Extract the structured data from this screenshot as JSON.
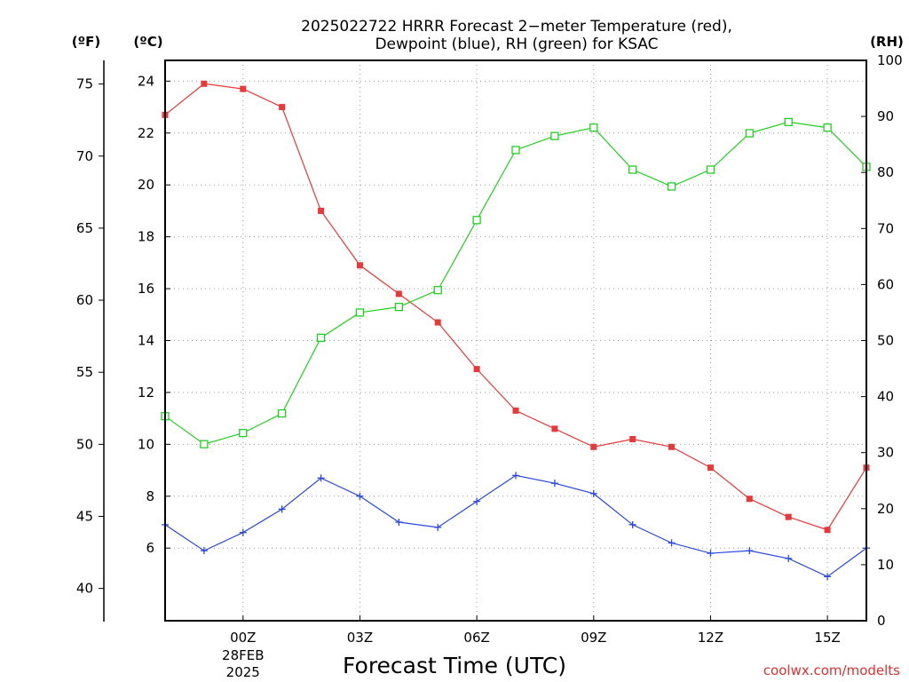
{
  "chart_data": {
    "type": "line",
    "title": [
      "2025022722 HRRR Forecast 2−meter Temperature (red),",
      "Dewpoint (blue), RH (green) for KSAC"
    ],
    "xlabel": "Forecast Time (UTC)",
    "credit": "coolwx.com/modelts",
    "units": {
      "fahrenheit": "(ºF)",
      "celsius": "(ºC)",
      "rh": "(RH)"
    },
    "x_ticks": [
      {
        "label": "00Z",
        "sublabels": [
          "28FEB",
          "2025"
        ],
        "hour": 2
      },
      {
        "label": "03Z",
        "sublabels": [],
        "hour": 5
      },
      {
        "label": "06Z",
        "sublabels": [],
        "hour": 8
      },
      {
        "label": "09Z",
        "sublabels": [],
        "hour": 11
      },
      {
        "label": "12Z",
        "sublabels": [],
        "hour": 14
      },
      {
        "label": "15Z",
        "sublabels": [],
        "hour": 17
      }
    ],
    "x_range": [
      0,
      18
    ],
    "celsius_range": [
      3.2,
      24.8
    ],
    "celsius_ticks": [
      6,
      8,
      10,
      12,
      14,
      16,
      18,
      20,
      22,
      24
    ],
    "fahrenheit_ticks": [
      40,
      45,
      50,
      55,
      60,
      65,
      70,
      75
    ],
    "rh_range": [
      0,
      100
    ],
    "rh_ticks": [
      0,
      10,
      20,
      30,
      40,
      50,
      60,
      70,
      80,
      90,
      100
    ],
    "grid": true,
    "x": [
      0,
      1,
      2,
      3,
      4,
      5,
      6,
      7,
      8,
      9,
      10,
      11,
      12,
      13,
      14,
      15,
      16,
      17,
      18
    ],
    "series": [
      {
        "name": "Temperature",
        "axis": "celsius",
        "color": "#e83838",
        "marker": "filled-square",
        "values": [
          22.7,
          23.9,
          23.7,
          23.0,
          19.0,
          16.9,
          15.8,
          14.7,
          12.9,
          11.3,
          10.6,
          9.9,
          10.2,
          9.9,
          9.1,
          7.9,
          7.2,
          6.7,
          9.1
        ]
      },
      {
        "name": "Dewpoint",
        "axis": "celsius",
        "color": "#2848e0",
        "marker": "plus",
        "values": [
          6.9,
          5.9,
          6.6,
          7.5,
          8.7,
          8.0,
          7.0,
          6.8,
          7.8,
          8.8,
          8.5,
          8.1,
          6.9,
          6.2,
          5.8,
          5.9,
          5.6,
          4.9,
          6.0
        ]
      },
      {
        "name": "RH",
        "axis": "rh",
        "color": "#20d020",
        "marker": "open-square",
        "values": [
          36.5,
          31.5,
          33.5,
          37.0,
          50.5,
          55.0,
          56.0,
          59.0,
          71.5,
          84.0,
          86.5,
          88.0,
          80.5,
          77.5,
          80.5,
          87.0,
          89.0,
          88.0,
          81.0
        ]
      }
    ]
  }
}
